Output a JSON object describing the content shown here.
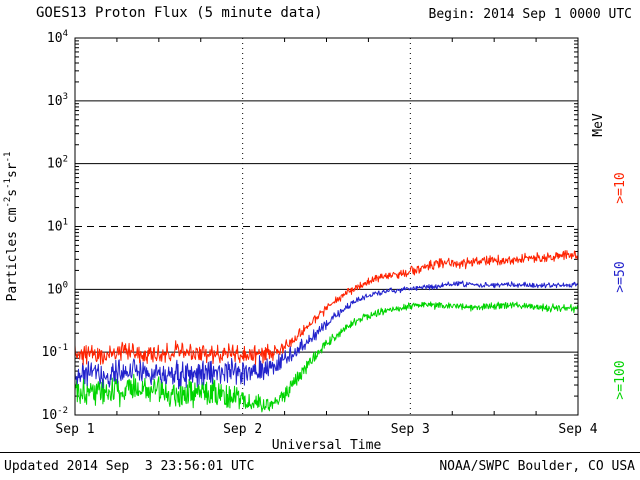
{
  "header": {
    "title": "GOES13 Proton Flux (5 minute data)",
    "begin_label": "Begin: 2014 Sep 1 0000 UTC"
  },
  "footer": {
    "updated": "Updated 2014 Sep  3 23:56:01 UTC",
    "source": "NOAA/SWPC Boulder, CO USA"
  },
  "chart_data": {
    "type": "line",
    "title": "GOES13 Proton Flux (5 minute data)",
    "subtitle": "Begin: 2014 Sep 1 0000 UTC",
    "xlabel": "Universal Time",
    "ylabel_segments": [
      {
        "t": "Particles cm",
        "sup": false
      },
      {
        "t": "-2",
        "sup": true
      },
      {
        "t": "s",
        "sup": false
      },
      {
        "t": "-1",
        "sup": true
      },
      {
        "t": "sr",
        "sup": false
      },
      {
        "t": "-1",
        "sup": true
      }
    ],
    "right_axis_label": "MeV",
    "x_ticks": [
      "Sep 1",
      "Sep 2",
      "Sep 3",
      "Sep 4"
    ],
    "x_range_days": [
      0,
      3
    ],
    "y_log_range": [
      -2,
      4
    ],
    "y_tick_exponents": [
      4,
      3,
      2,
      1,
      0,
      -1,
      -2
    ],
    "solid_gridline_exponents": [
      3,
      2,
      0,
      -1
    ],
    "dashed_gridline_exponents": [
      1
    ],
    "grid": true,
    "legend_position": "right",
    "samples_per_day": 288,
    "axis_color": "#000000",
    "background_color": "#ffffff",
    "series": [
      {
        "name": ">=100",
        "color": "#00d400",
        "units": "MeV",
        "keypoints": [
          [
            0.0,
            0.026,
            0.16
          ],
          [
            0.2,
            0.023,
            0.16
          ],
          [
            0.4,
            0.027,
            0.16
          ],
          [
            0.6,
            0.022,
            0.16
          ],
          [
            0.8,
            0.025,
            0.16
          ],
          [
            0.95,
            0.02,
            0.14
          ],
          [
            1.05,
            0.015,
            0.11
          ],
          [
            1.15,
            0.014,
            0.1
          ],
          [
            1.25,
            0.02,
            0.1
          ],
          [
            1.35,
            0.045,
            0.08
          ],
          [
            1.45,
            0.1,
            0.06
          ],
          [
            1.55,
            0.18,
            0.05
          ],
          [
            1.65,
            0.28,
            0.045
          ],
          [
            1.75,
            0.38,
            0.04
          ],
          [
            1.85,
            0.46,
            0.04
          ],
          [
            1.95,
            0.52,
            0.04
          ],
          [
            2.1,
            0.56,
            0.04
          ],
          [
            2.25,
            0.55,
            0.04
          ],
          [
            2.4,
            0.52,
            0.04
          ],
          [
            2.55,
            0.56,
            0.04
          ],
          [
            2.7,
            0.53,
            0.04
          ],
          [
            2.85,
            0.5,
            0.045
          ],
          [
            3.0,
            0.5,
            0.045
          ]
        ]
      },
      {
        "name": ">=50",
        "color": "#2222cc",
        "units": "MeV",
        "keypoints": [
          [
            0.0,
            0.045,
            0.14
          ],
          [
            0.2,
            0.042,
            0.14
          ],
          [
            0.4,
            0.05,
            0.14
          ],
          [
            0.6,
            0.043,
            0.14
          ],
          [
            0.8,
            0.047,
            0.14
          ],
          [
            1.0,
            0.05,
            0.13
          ],
          [
            1.15,
            0.055,
            0.12
          ],
          [
            1.3,
            0.09,
            0.09
          ],
          [
            1.4,
            0.16,
            0.07
          ],
          [
            1.5,
            0.28,
            0.05
          ],
          [
            1.6,
            0.48,
            0.04
          ],
          [
            1.7,
            0.7,
            0.035
          ],
          [
            1.8,
            0.88,
            0.03
          ],
          [
            1.9,
            0.97,
            0.03
          ],
          [
            2.0,
            1.02,
            0.03
          ],
          [
            2.15,
            1.12,
            0.03
          ],
          [
            2.3,
            1.25,
            0.03
          ],
          [
            2.45,
            1.15,
            0.03
          ],
          [
            2.6,
            1.2,
            0.03
          ],
          [
            2.8,
            1.15,
            0.03
          ],
          [
            3.0,
            1.2,
            0.03
          ]
        ]
      },
      {
        "name": ">=10",
        "color": "#ff2200",
        "units": "MeV",
        "keypoints": [
          [
            0.0,
            0.095,
            0.1
          ],
          [
            0.15,
            0.085,
            0.1
          ],
          [
            0.3,
            0.1,
            0.1
          ],
          [
            0.45,
            0.09,
            0.1
          ],
          [
            0.6,
            0.105,
            0.1
          ],
          [
            0.75,
            0.088,
            0.1
          ],
          [
            0.9,
            0.095,
            0.1
          ],
          [
            1.05,
            0.09,
            0.1
          ],
          [
            1.2,
            0.1,
            0.09
          ],
          [
            1.3,
            0.15,
            0.07
          ],
          [
            1.4,
            0.28,
            0.06
          ],
          [
            1.5,
            0.5,
            0.05
          ],
          [
            1.6,
            0.8,
            0.04
          ],
          [
            1.7,
            1.15,
            0.04
          ],
          [
            1.8,
            1.5,
            0.04
          ],
          [
            1.9,
            1.7,
            0.04
          ],
          [
            2.0,
            1.9,
            0.05
          ],
          [
            2.1,
            2.4,
            0.05
          ],
          [
            2.2,
            2.7,
            0.05
          ],
          [
            2.3,
            2.45,
            0.05
          ],
          [
            2.4,
            2.9,
            0.05
          ],
          [
            2.5,
            3.0,
            0.05
          ],
          [
            2.6,
            2.85,
            0.05
          ],
          [
            2.7,
            3.2,
            0.05
          ],
          [
            2.8,
            3.1,
            0.05
          ],
          [
            2.9,
            3.45,
            0.05
          ],
          [
            3.0,
            3.5,
            0.05
          ]
        ]
      }
    ]
  }
}
